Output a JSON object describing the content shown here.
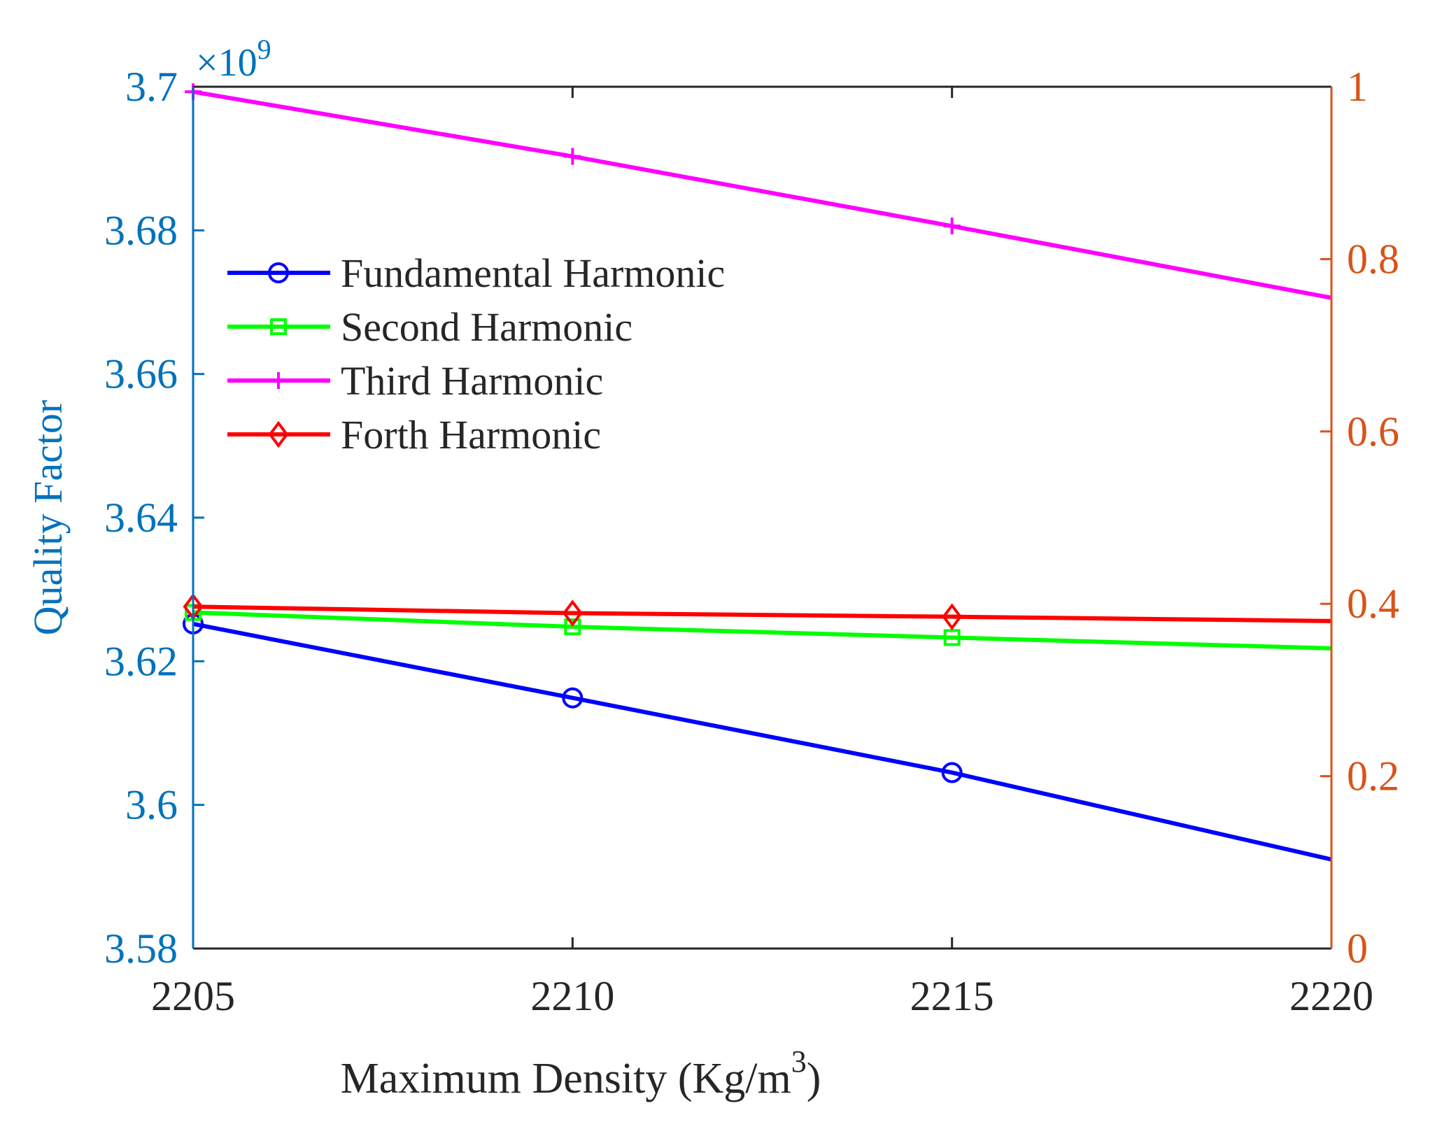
{
  "chart_data": {
    "type": "line",
    "title": "",
    "xlabel": "Maximum Density (Kg/m",
    "xlabel_sup": "3",
    "xlabel_tail": ")",
    "ylabel": "Quality Factor",
    "y_exponent_prefix": "×10",
    "y_exponent_power": "9",
    "x": [
      2205,
      2210,
      2215,
      2220
    ],
    "xlim": [
      2205,
      2220
    ],
    "xticks": [
      "2205",
      "2210",
      "2215",
      "2220"
    ],
    "ylim": [
      3.58,
      3.7
    ],
    "yticks": [
      "3.58",
      "3.6",
      "3.62",
      "3.64",
      "3.66",
      "3.68",
      "3.7"
    ],
    "yticks_values": [
      3.58,
      3.6,
      3.62,
      3.64,
      3.66,
      3.68,
      3.7
    ],
    "y2lim": [
      0,
      1
    ],
    "y2ticks": [
      "0",
      "0.2",
      "0.4",
      "0.6",
      "0.8",
      "1"
    ],
    "y2ticks_values": [
      0,
      0.2,
      0.4,
      0.6,
      0.8,
      1
    ],
    "legend_position": "upper-left",
    "colors": {
      "left_axis": "#0072BD",
      "right_axis": "#D95319",
      "frame": "#262626"
    },
    "series": [
      {
        "name": "Fundamental Harmonic",
        "marker": "circle",
        "color": "#0000FF",
        "values": [
          3.6252,
          3.6149,
          3.6045,
          3.5924
        ]
      },
      {
        "name": "Second Harmonic",
        "marker": "square",
        "color": "#00FF00",
        "values": [
          3.6268,
          3.6248,
          3.6233,
          3.6218
        ]
      },
      {
        "name": "Third Harmonic",
        "marker": "plus",
        "color": "#FF00FF",
        "values": [
          3.6993,
          3.6903,
          3.6806,
          3.6706
        ]
      },
      {
        "name": "Forth Harmonic",
        "marker": "diamond",
        "color": "#FF0000",
        "values": [
          3.6276,
          3.6267,
          3.6262,
          3.6256
        ]
      }
    ]
  }
}
